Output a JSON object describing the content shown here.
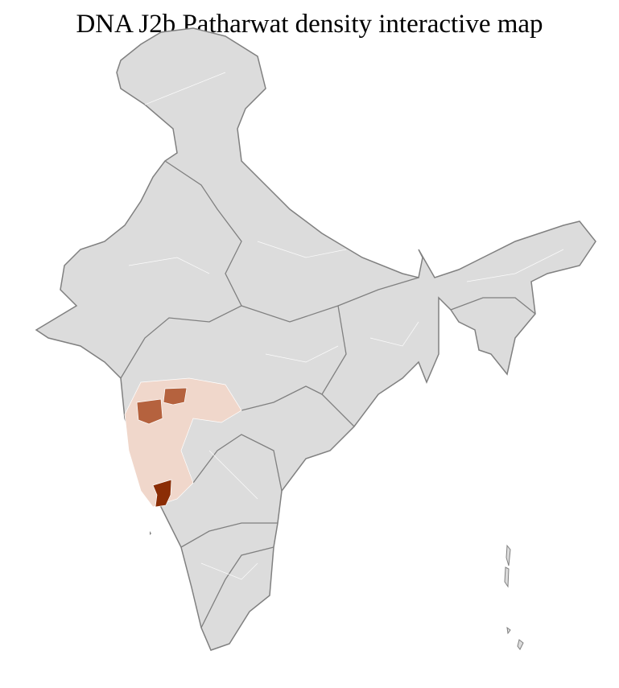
{
  "title": "DNA J2b Patharwat density interactive map",
  "map": {
    "region": "India districts",
    "colors": {
      "base": "#dcdcdc",
      "border": "#808080",
      "district_border": "#ffffff",
      "low": "#f0d7cb",
      "medium": "#b5623e",
      "high": "#8b2d05"
    }
  }
}
